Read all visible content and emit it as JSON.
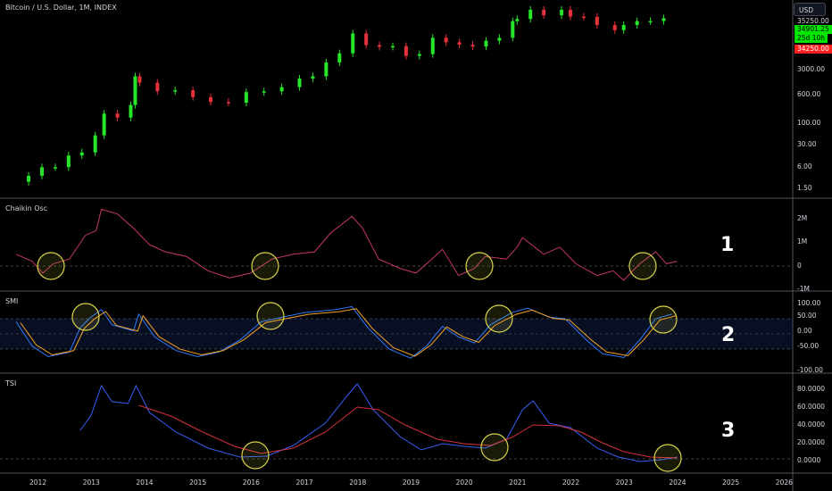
{
  "header": {
    "title": "Bitcoin / U.S. Dollar, 1M, INDEX",
    "currency_button": "USD"
  },
  "price_axis": {
    "labels": [
      "35250.00",
      "3000.00",
      "600.00",
      "100.00",
      "30.00",
      "6.00",
      "1.50"
    ],
    "tags": [
      {
        "label": "34901.25",
        "color": "#00e600",
        "text_color": "#000000"
      },
      {
        "label": "25d 10h",
        "color": "#00e600",
        "text_color": "#000000"
      },
      {
        "label": "34250.00",
        "color": "#ff1f1f",
        "text_color": "#ffffff"
      }
    ]
  },
  "panes": {
    "chaikin": {
      "label": "Chaikin Osc",
      "axis": [
        "2M",
        "1M",
        "0",
        "-1M"
      ],
      "number": "1"
    },
    "smi": {
      "label": "SMI",
      "axis": [
        "100.00",
        "50.00",
        "0.00",
        "-50.00",
        "-100.00"
      ],
      "number": "2"
    },
    "tsi": {
      "label": "TSI",
      "axis": [
        "80.0000",
        "60.0000",
        "40.0000",
        "20.0000",
        "0.0000"
      ],
      "number": "3"
    }
  },
  "time_axis": [
    "2012",
    "2013",
    "2014",
    "2015",
    "2016",
    "2017",
    "2018",
    "2019",
    "2020",
    "2021",
    "2022",
    "2023",
    "2024",
    "2025",
    "2026"
  ],
  "colors": {
    "up": "#26e62a",
    "down": "#e6313a",
    "chaikin": "#c2395a",
    "smi_signal": "#f7a325",
    "smi_main": "#3179f5",
    "tsi_main": "#3a5ef5",
    "tsi_signal": "#d3313a",
    "highlight": "#d8d34a",
    "grid": "#3a3e48"
  },
  "chart_data": [
    {
      "type": "candlestick",
      "title": "Bitcoin / U.S. Dollar, 1M, INDEX",
      "y_scale": "log",
      "ylim": [
        1.5,
        35250
      ],
      "x": [
        "2011-11",
        "2012-02",
        "2012-05",
        "2012-08",
        "2012-11",
        "2013-02",
        "2013-04",
        "2013-07",
        "2013-10",
        "2013-11",
        "2013-12",
        "2014-04",
        "2014-08",
        "2014-12",
        "2015-04",
        "2015-08",
        "2015-12",
        "2016-04",
        "2016-08",
        "2016-12",
        "2017-03",
        "2017-06",
        "2017-09",
        "2017-12",
        "2018-03",
        "2018-06",
        "2018-09",
        "2018-12",
        "2019-03",
        "2019-06",
        "2019-09",
        "2019-12",
        "2020-03",
        "2020-06",
        "2020-09",
        "2020-12",
        "2021-01",
        "2021-04",
        "2021-07",
        "2021-11",
        "2022-01",
        "2022-04",
        "2022-07",
        "2022-11",
        "2023-01",
        "2023-04",
        "2023-07",
        "2023-10"
      ],
      "close": [
        3,
        5,
        5,
        10,
        12,
        33,
        120,
        95,
        200,
        1100,
        750,
        450,
        480,
        320,
        240,
        230,
        430,
        450,
        580,
        960,
        1100,
        2500,
        4300,
        14000,
        7000,
        6300,
        6600,
        3700,
        4100,
        10800,
        8300,
        7200,
        6400,
        9100,
        10800,
        29000,
        33000,
        57000,
        41000,
        57000,
        38000,
        37500,
        23000,
        17000,
        23000,
        29000,
        29200,
        34500
      ]
    },
    {
      "type": "line",
      "name": "Chaikin Osc",
      "ylim": [
        -1000000,
        2500000
      ]
    },
    {
      "type": "line",
      "name": "SMI",
      "ylim": [
        -100,
        100
      ]
    },
    {
      "type": "line",
      "name": "TSI",
      "ylim": [
        -5,
        90
      ]
    }
  ]
}
